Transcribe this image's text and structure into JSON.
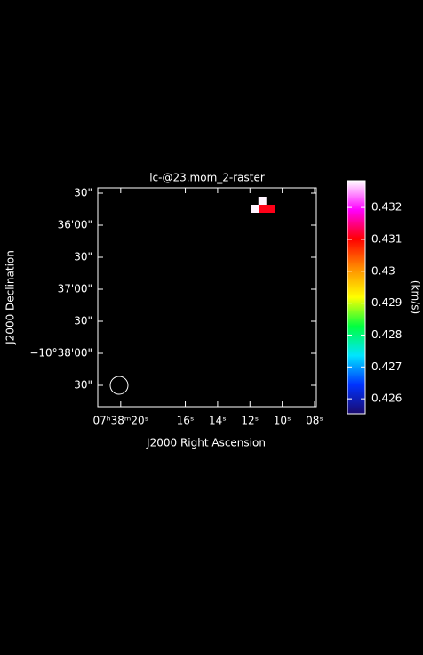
{
  "chart_data": {
    "type": "image",
    "title": "lc-@23.mom_2-raster",
    "x_label": "J2000 Right Ascension",
    "y_label": "J2000 Declination",
    "colorbar_label": "(km/s)",
    "xlim": [
      21.42,
      7.89
    ],
    "xticks": [
      {
        "value": 20,
        "label": "07ʰ38ᵐ20ˢ"
      },
      {
        "value": 16,
        "label": "16ˢ"
      },
      {
        "value": 14,
        "label": "14ˢ"
      },
      {
        "value": 12,
        "label": "12ˢ"
      },
      {
        "value": 10,
        "label": "10ˢ"
      },
      {
        "value": 8,
        "label": "08ˢ"
      }
    ],
    "ylim": [
      -10.647222,
      -10.590278
    ],
    "yticks": [
      {
        "value": -10.591667,
        "label": "30\""
      },
      {
        "value": -10.6,
        "label": "36'00\""
      },
      {
        "value": -10.608333,
        "label": "30\""
      },
      {
        "value": -10.616667,
        "label": "37'00\""
      },
      {
        "value": -10.625,
        "label": "30\""
      },
      {
        "value": -10.633333,
        "label": "−10°38'00\""
      },
      {
        "value": -10.641667,
        "label": "30\""
      }
    ],
    "clim": [
      0.42553,
      0.43284
    ],
    "cticks": [
      0.426,
      0.427,
      0.428,
      0.429,
      0.43,
      0.431,
      0.432
    ],
    "colormap": [
      "#1a0a6e",
      "#0033ff",
      "#00e5ff",
      "#00ff40",
      "#ffff00",
      "#ff8c00",
      "#ff0000",
      "#ff00ff",
      "#ffffff"
    ],
    "pixels": {
      "ra": [
        11.23,
        11.67,
        11.21,
        10.71
      ],
      "dec": [
        -10.593635,
        -10.595718,
        -10.595718,
        -10.595718
      ],
      "values": [
        0.4328,
        0.4328,
        0.4311,
        0.4311
      ]
    }
  }
}
